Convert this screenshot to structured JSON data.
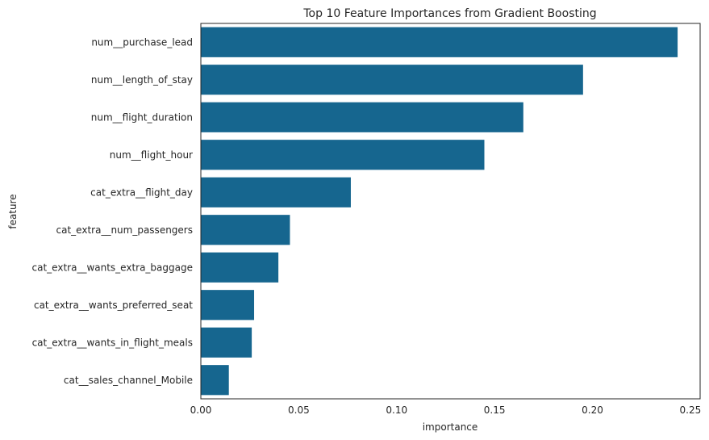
{
  "chart_data": {
    "type": "bar",
    "orientation": "horizontal",
    "title": "Top 10 Feature Importances from Gradient Boosting",
    "xlabel": "importance",
    "ylabel": "feature",
    "categories": [
      "num__purchase_lead",
      "num__length_of_stay",
      "num__flight_duration",
      "num__flight_hour",
      "cat_extra__flight_day",
      "cat_extra__num_passengers",
      "cat_extra__wants_extra_baggage",
      "cat_extra__wants_preferred_seat",
      "cat_extra__wants_in_flight_meals",
      "cat__sales_channel_Mobile"
    ],
    "values": [
      0.2435,
      0.1952,
      0.1647,
      0.1448,
      0.0766,
      0.0455,
      0.0396,
      0.0272,
      0.026,
      0.0143
    ],
    "xlim": [
      0,
      0.255
    ],
    "xticks": [
      0.0,
      0.05,
      0.1,
      0.15,
      0.2,
      0.25
    ],
    "xtick_labels": [
      "0.00",
      "0.05",
      "0.10",
      "0.15",
      "0.20",
      "0.25"
    ],
    "bar_color": "#16668f",
    "grid": false
  }
}
